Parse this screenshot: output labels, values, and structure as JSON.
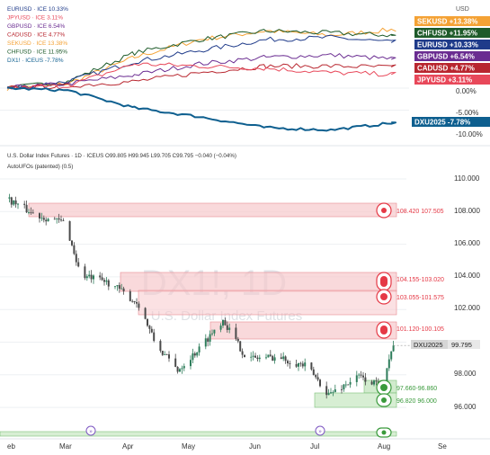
{
  "top_panel": {
    "legend": [
      {
        "name": "EURUSD · ICE",
        "value": "10.33%",
        "color": "#1f3b8a"
      },
      {
        "name": "JPYUSD · ICE",
        "value": "3.11%",
        "color": "#e8485a"
      },
      {
        "name": "GBPUSD · ICE",
        "value": "6.54%",
        "color": "#6a2c91"
      },
      {
        "name": "CADUSD · ICE",
        "value": "4.77%",
        "color": "#b8262f"
      },
      {
        "name": "SEKUSD · ICE",
        "value": "13.38%",
        "color": "#f4a235"
      },
      {
        "name": "CHFUSD · ICE",
        "value": "11.95%",
        "color": "#1e5b2a"
      },
      {
        "name": "DX1! · ICEUS",
        "value": "-7.78%",
        "color": "#0e5f8f"
      }
    ],
    "axis_unit": "USD",
    "axis_ticks": [
      "0.00%",
      "-5.00%",
      "-10.00%"
    ],
    "series_tags": [
      {
        "label": "SEKUSD",
        "value": "+13.38%",
        "color": "#f4a235",
        "text_color": "#ffffff"
      },
      {
        "label": "CHFUSD",
        "value": "+11.95%",
        "color": "#1e5b2a",
        "text_color": "#ffffff"
      },
      {
        "label": "EURUSD",
        "value": "+10.33%",
        "color": "#1f3b8a",
        "text_color": "#ffffff"
      },
      {
        "label": "GBPUSD",
        "value": "+6.54%",
        "color": "#6a2c91",
        "text_color": "#ffffff"
      },
      {
        "label": "CADUSD",
        "value": "+4.77%",
        "color": "#b8262f",
        "text_color": "#ffffff"
      },
      {
        "label": "JPYUSD",
        "value": "+3.11%",
        "color": "#e8485a",
        "text_color": "#ffffff"
      },
      {
        "label": "DXU2025",
        "value": "-7.78%",
        "color": "#0e5f8f",
        "text_color": "#ffffff"
      }
    ]
  },
  "main_panel": {
    "header": "U.S. Dollar Index Futures · 1D · ICEUS",
    "ohlc": "O99.805 H99.945 L99.705 C99.795 −0.040 (−0.04%)",
    "indicator": "AutoUFOs (patented)",
    "indicator_param": "(0.5)",
    "watermark_symbol": "DX1!, 1D",
    "watermark_name": "U.S. Dollar Index Futures",
    "price_tag": {
      "label": "DXU2025",
      "value": "99.795"
    },
    "price_ticks": [
      "110.000",
      "108.000",
      "106.000",
      "104.000",
      "102.000",
      "98.000",
      "96.000"
    ],
    "zones": [
      {
        "label": "108.420 107.505",
        "kind": "supply"
      },
      {
        "label": "104.155-103.020",
        "kind": "supply"
      },
      {
        "label": "103.055-101.575",
        "kind": "supply"
      },
      {
        "label": "101.120-100.105",
        "kind": "supply"
      },
      {
        "label": "97.660-96.860",
        "kind": "demand"
      },
      {
        "label": "96.820 96.000",
        "kind": "demand"
      }
    ],
    "x_ticks": [
      "eb",
      "Mar",
      "Apr",
      "May",
      "Jun",
      "Jul",
      "Aug",
      "Se"
    ],
    "colors": {
      "up": "#2e7d5b",
      "down": "#4a4a4a",
      "supply": "#f7c9cc",
      "demand": "#c9e8c4"
    }
  },
  "chart_data": [
    {
      "type": "line",
      "title": "",
      "x": [
        "Feb",
        "Mar",
        "Apr",
        "May",
        "Jun",
        "Jul",
        "Aug"
      ],
      "ylabel": "",
      "y_unit": "%",
      "ylim": [
        -10,
        15
      ],
      "series": [
        {
          "name": "SEKUSD",
          "values": [
            0,
            1.0,
            7.0,
            11.0,
            13.0,
            12.0,
            13.38
          ]
        },
        {
          "name": "CHFUSD",
          "values": [
            0,
            1.5,
            8.0,
            11.0,
            13.0,
            12.5,
            11.95
          ]
        },
        {
          "name": "EURUSD",
          "values": [
            0,
            1.5,
            6.0,
            8.5,
            11.0,
            11.5,
            10.33
          ]
        },
        {
          "name": "GBPUSD",
          "values": [
            0,
            1.0,
            3.0,
            5.5,
            7.0,
            7.5,
            6.54
          ]
        },
        {
          "name": "CADUSD",
          "values": [
            0,
            0.5,
            1.5,
            3.5,
            5.0,
            5.0,
            4.77
          ]
        },
        {
          "name": "JPYUSD",
          "values": [
            0,
            0.5,
            5.5,
            5.0,
            4.5,
            3.5,
            3.11
          ]
        },
        {
          "name": "DX1!",
          "values": [
            0,
            -0.5,
            -4.5,
            -6.5,
            -9.0,
            -9.5,
            -7.78
          ]
        }
      ]
    },
    {
      "type": "candlestick",
      "title": "U.S. Dollar Index Futures · 1D · ICEUS",
      "x": [
        "Feb",
        "Mar",
        "Apr",
        "May",
        "Jun",
        "Jul",
        "Aug"
      ],
      "ylim": [
        95,
        111
      ],
      "close_path": [
        {
          "date": "2025-02-01",
          "close": 108.8
        },
        {
          "date": "2025-02-14",
          "close": 107.8
        },
        {
          "date": "2025-02-28",
          "close": 107.3
        },
        {
          "date": "2025-03-07",
          "close": 104.1
        },
        {
          "date": "2025-03-21",
          "close": 103.6
        },
        {
          "date": "2025-04-03",
          "close": 102.3
        },
        {
          "date": "2025-04-11",
          "close": 99.8
        },
        {
          "date": "2025-04-21",
          "close": 98.3
        },
        {
          "date": "2025-05-01",
          "close": 99.6
        },
        {
          "date": "2025-05-12",
          "close": 101.4
        },
        {
          "date": "2025-05-23",
          "close": 99.0
        },
        {
          "date": "2025-06-06",
          "close": 99.1
        },
        {
          "date": "2025-06-20",
          "close": 98.5
        },
        {
          "date": "2025-06-30",
          "close": 96.8
        },
        {
          "date": "2025-07-14",
          "close": 97.9
        },
        {
          "date": "2025-07-24",
          "close": 97.3
        },
        {
          "date": "2025-07-30",
          "close": 99.8
        }
      ],
      "zones": [
        {
          "low": 107.505,
          "high": 108.42
        },
        {
          "low": 103.02,
          "high": 104.155
        },
        {
          "low": 101.575,
          "high": 103.055
        },
        {
          "low": 100.105,
          "high": 101.12
        },
        {
          "low": 96.86,
          "high": 97.66
        },
        {
          "low": 96.0,
          "high": 96.82
        }
      ],
      "last": 99.795
    }
  ]
}
